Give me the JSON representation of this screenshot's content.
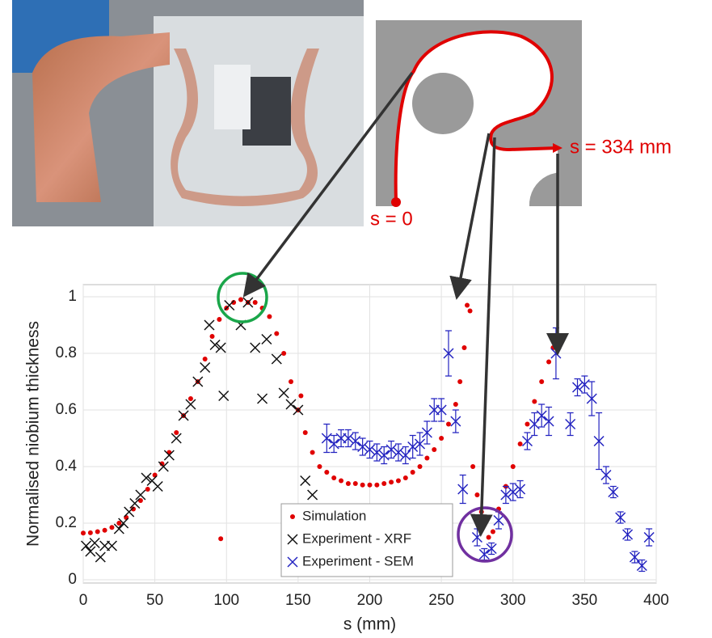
{
  "chart_data": {
    "type": "scatter",
    "xlabel": "s (mm)",
    "ylabel": "Normalised niobium thickness",
    "annotations": [
      "s = 334 mm",
      "s = 0"
    ],
    "xlim": [
      0,
      400
    ],
    "xticks": [
      0,
      50,
      100,
      150,
      200,
      250,
      300,
      350,
      400
    ],
    "ylim": [
      0,
      1
    ],
    "yticks": [
      0,
      0.2,
      0.4,
      0.6,
      0.8,
      1
    ],
    "grid": true,
    "legend": "bottom",
    "series": [
      {
        "name": "Simulation",
        "color": "#e00000",
        "marker": "dot",
        "x": [
          0,
          5,
          10,
          15,
          20,
          25,
          30,
          35,
          40,
          45,
          50,
          55,
          60,
          65,
          70,
          75,
          80,
          85,
          90,
          95,
          96,
          100,
          105,
          110,
          115,
          120,
          125,
          130,
          135,
          140,
          145,
          150,
          152,
          155,
          160,
          165,
          170,
          175,
          180,
          185,
          190,
          195,
          200,
          205,
          210,
          215,
          220,
          225,
          230,
          235,
          240,
          245,
          250,
          255,
          260,
          263,
          266,
          268,
          270,
          272,
          275,
          278,
          280,
          283,
          286,
          290,
          295,
          300,
          305,
          310,
          315,
          320,
          325,
          328
        ],
        "values": [
          0.165,
          0.166,
          0.17,
          0.175,
          0.185,
          0.2,
          0.22,
          0.25,
          0.28,
          0.32,
          0.37,
          0.41,
          0.45,
          0.52,
          0.58,
          0.64,
          0.7,
          0.78,
          0.86,
          0.92,
          0.145,
          0.96,
          0.98,
          0.99,
          0.98,
          0.98,
          0.96,
          0.93,
          0.87,
          0.8,
          0.7,
          0.6,
          0.65,
          0.52,
          0.45,
          0.4,
          0.38,
          0.36,
          0.35,
          0.34,
          0.34,
          0.335,
          0.335,
          0.335,
          0.34,
          0.345,
          0.35,
          0.36,
          0.38,
          0.4,
          0.43,
          0.46,
          0.5,
          0.55,
          0.62,
          0.7,
          0.82,
          0.97,
          0.95,
          0.4,
          0.3,
          0.24,
          0.2,
          0.15,
          0.17,
          0.25,
          0.33,
          0.4,
          0.48,
          0.55,
          0.63,
          0.7,
          0.77,
          0.82
        ]
      },
      {
        "name": "Experiment - XRF",
        "color": "#111111",
        "marker": "x",
        "x": [
          2,
          5,
          8,
          12,
          15,
          20,
          25,
          28,
          32,
          36,
          40,
          44,
          48,
          52,
          56,
          60,
          65,
          70,
          75,
          80,
          85,
          88,
          92,
          96,
          98,
          102,
          110,
          115,
          120,
          125,
          128,
          135,
          140,
          145,
          150,
          155,
          160
        ],
        "values": [
          0.12,
          0.1,
          0.13,
          0.08,
          0.12,
          0.12,
          0.18,
          0.2,
          0.24,
          0.27,
          0.3,
          0.36,
          0.35,
          0.33,
          0.4,
          0.44,
          0.5,
          0.58,
          0.62,
          0.7,
          0.75,
          0.9,
          0.83,
          0.82,
          0.65,
          0.97,
          0.9,
          0.98,
          0.82,
          0.64,
          0.85,
          0.78,
          0.66,
          0.62,
          0.6,
          0.35,
          0.3
        ]
      },
      {
        "name": "Experiment - SEM",
        "color": "#2323c0",
        "marker": "x",
        "x": [
          170,
          175,
          180,
          185,
          190,
          195,
          200,
          205,
          210,
          215,
          220,
          225,
          230,
          235,
          240,
          245,
          250,
          255,
          260,
          265,
          275,
          280,
          285,
          290,
          295,
          300,
          305,
          310,
          315,
          320,
          325,
          330,
          340,
          345,
          350,
          355,
          360,
          365,
          370,
          375,
          380,
          385,
          390,
          395
        ],
        "values": [
          0.5,
          0.48,
          0.5,
          0.5,
          0.49,
          0.47,
          0.46,
          0.45,
          0.44,
          0.46,
          0.45,
          0.44,
          0.47,
          0.48,
          0.52,
          0.6,
          0.6,
          0.8,
          0.56,
          0.32,
          0.15,
          0.09,
          0.11,
          0.21,
          0.3,
          0.31,
          0.32,
          0.49,
          0.55,
          0.58,
          0.56,
          0.8,
          0.55,
          0.68,
          0.69,
          0.64,
          0.49,
          0.37,
          0.31,
          0.22,
          0.16,
          0.08,
          0.05,
          0.15
        ],
        "errors": [
          0.05,
          0.03,
          0.03,
          0.03,
          0.03,
          0.03,
          0.03,
          0.03,
          0.03,
          0.03,
          0.03,
          0.03,
          0.04,
          0.04,
          0.04,
          0.04,
          0.04,
          0.08,
          0.04,
          0.05,
          0.03,
          0.02,
          0.02,
          0.03,
          0.03,
          0.03,
          0.03,
          0.03,
          0.04,
          0.04,
          0.05,
          0.09,
          0.04,
          0.03,
          0.03,
          0.06,
          0.1,
          0.03,
          0.02,
          0.02,
          0.02,
          0.02,
          0.02,
          0.03
        ]
      }
    ]
  }
}
